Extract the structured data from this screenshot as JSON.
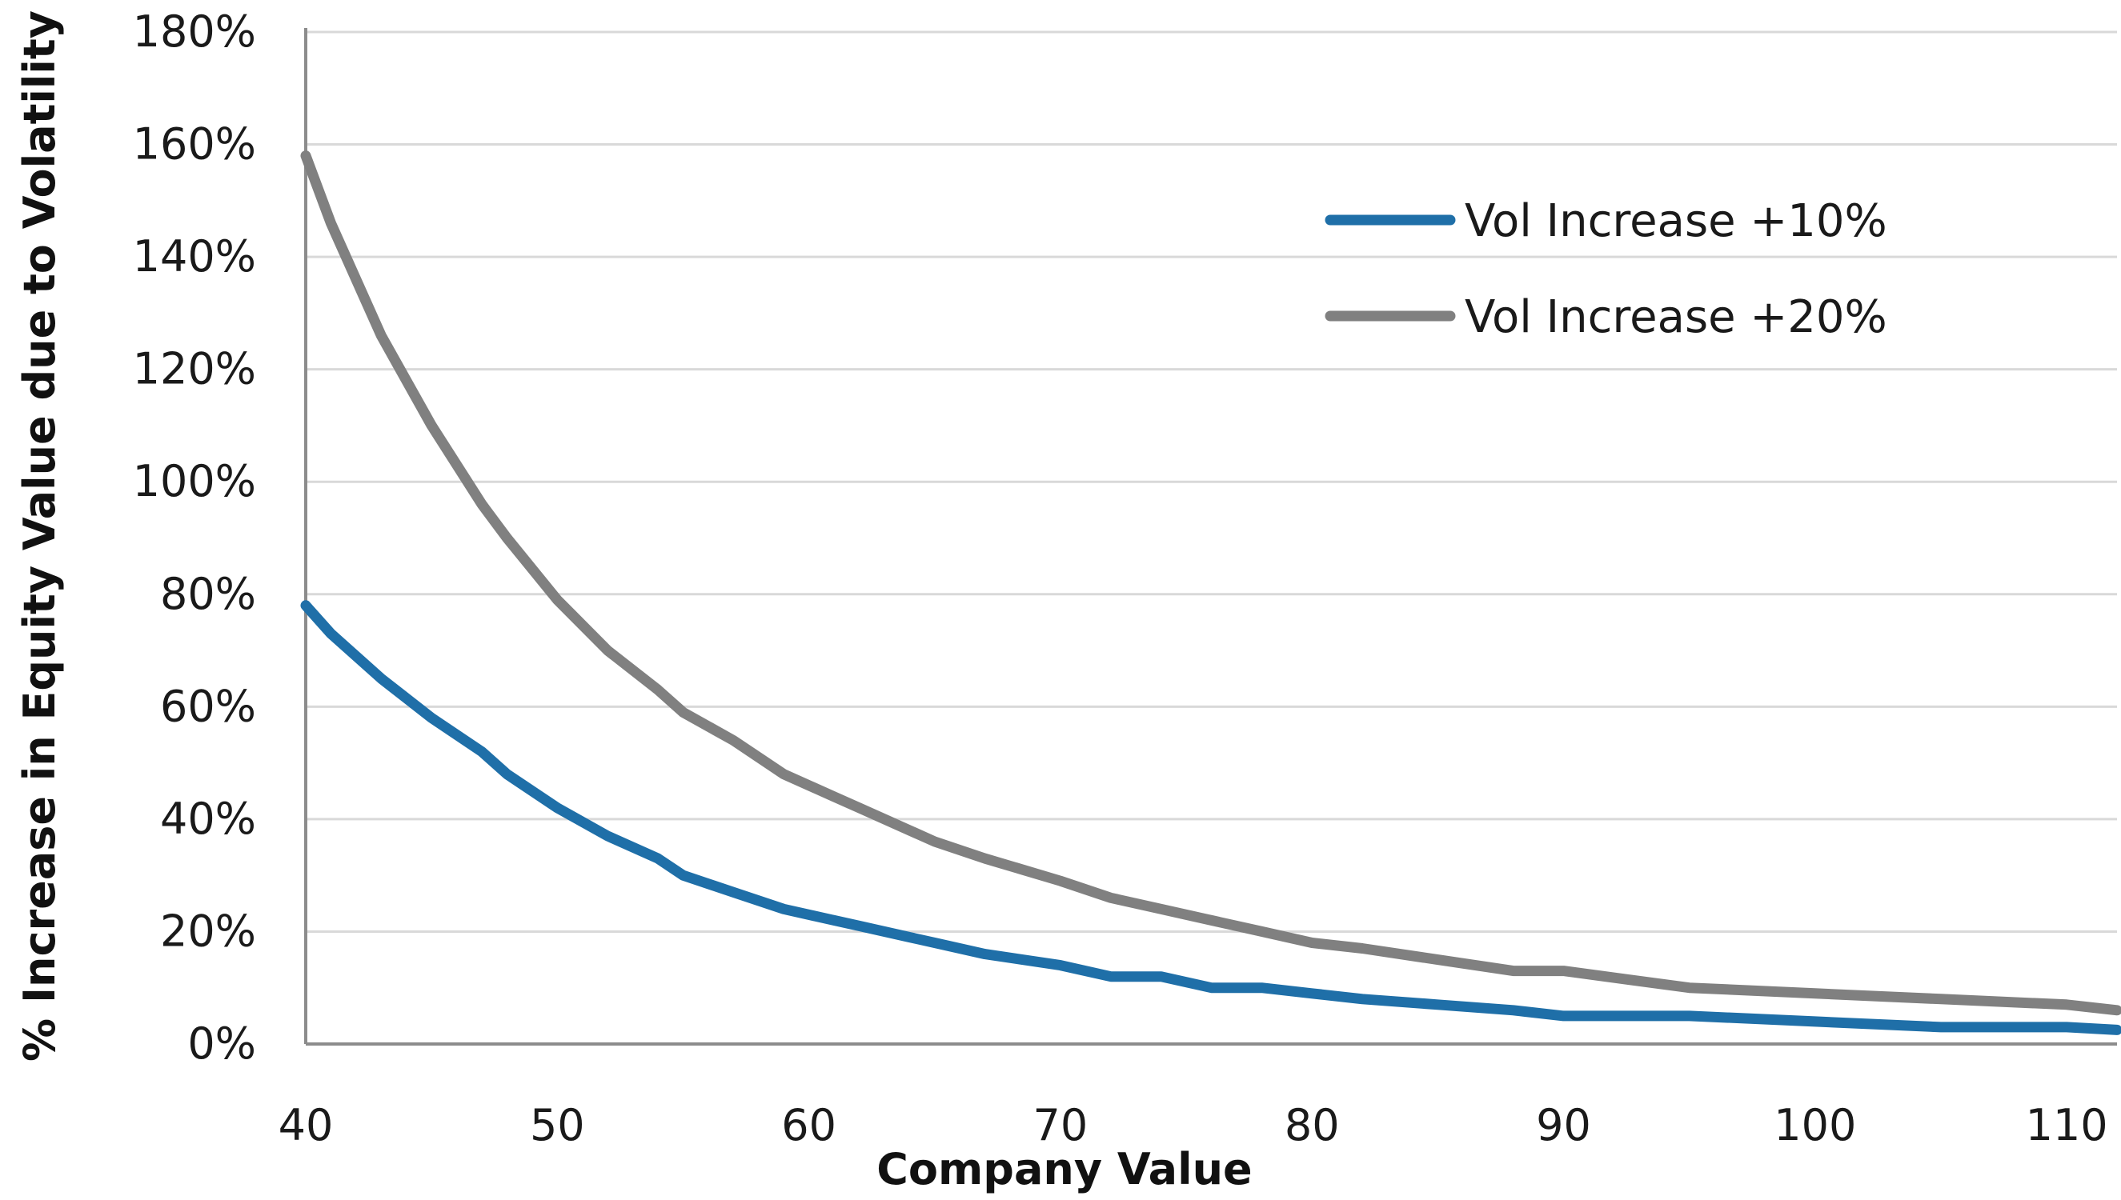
{
  "chart_data": {
    "type": "line",
    "title": "",
    "xlabel": "Company Value",
    "ylabel": "% Increase in Equity Value due to Volatility",
    "xlim": [
      40,
      112
    ],
    "ylim": [
      0,
      180
    ],
    "x_ticks": [
      40,
      50,
      60,
      70,
      80,
      90,
      100,
      110
    ],
    "x_tick_labels": [
      "40",
      "50",
      "60",
      "70",
      "80",
      "90",
      "100",
      "110"
    ],
    "y_ticks": [
      0,
      20,
      40,
      60,
      80,
      100,
      120,
      140,
      160,
      180
    ],
    "y_tick_labels": [
      "0%",
      "20%",
      "40%",
      "60%",
      "80%",
      "100%",
      "120%",
      "140%",
      "160%",
      "180%"
    ],
    "grid": true,
    "legend_position": "top-right",
    "x": [
      40,
      41,
      43,
      45,
      47,
      48,
      50,
      52,
      54,
      55,
      57,
      59,
      61,
      62,
      64,
      65,
      67,
      70,
      72,
      74,
      76,
      78,
      80,
      82,
      85,
      88,
      90,
      95,
      100,
      105,
      110,
      112
    ],
    "series": [
      {
        "name": "Vol Increase +10%",
        "color": "#1f6fa8",
        "values": [
          78,
          73,
          65,
          58,
          52,
          48,
          42,
          37,
          33,
          30,
          27,
          24,
          22,
          21,
          19,
          18,
          16,
          14,
          12,
          12,
          10,
          10,
          9,
          8,
          7,
          6,
          5,
          5,
          4,
          3,
          3,
          2.5
        ]
      },
      {
        "name": "Vol Increase +20%",
        "color": "#808080",
        "values": [
          158,
          146,
          126,
          110,
          96,
          90,
          79,
          70,
          63,
          59,
          54,
          48,
          44,
          42,
          38,
          36,
          33,
          29,
          26,
          24,
          22,
          20,
          18,
          17,
          15,
          13,
          13,
          10,
          9,
          8,
          7,
          6
        ]
      }
    ]
  }
}
